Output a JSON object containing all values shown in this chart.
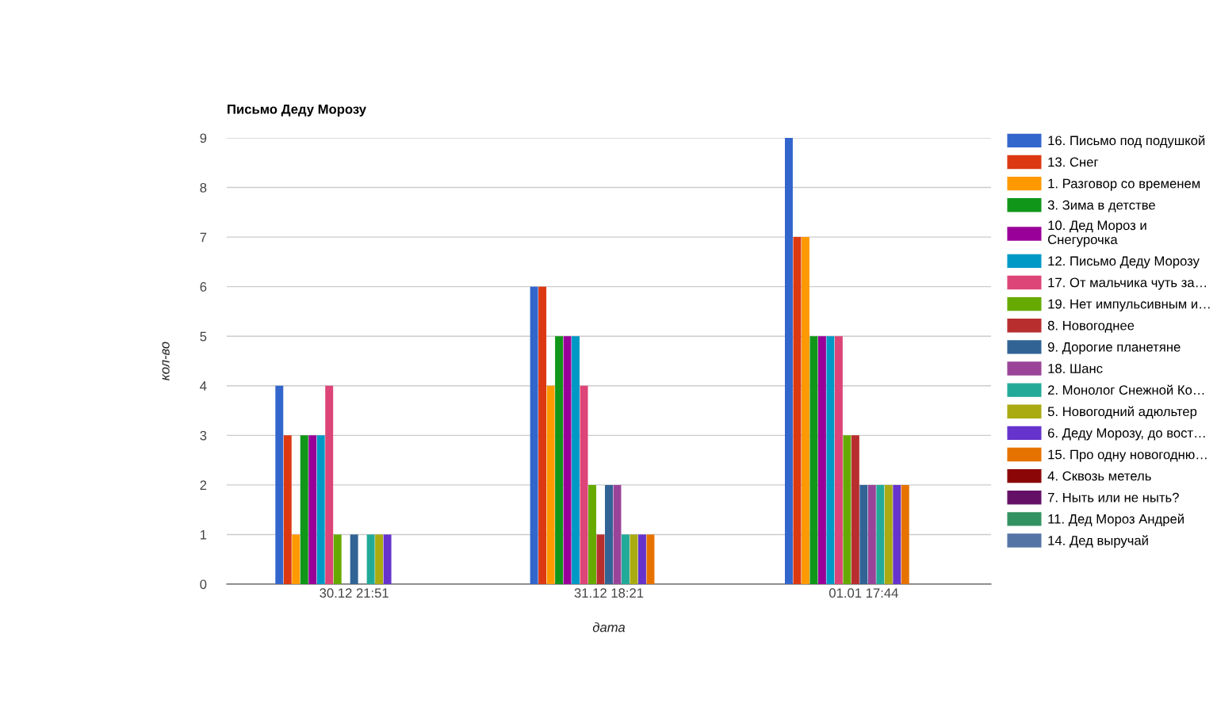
{
  "chart_data": {
    "type": "bar",
    "title": "Письмо Деду Морозу",
    "xlabel": "дата",
    "ylabel": "кол-во",
    "categories": [
      "30.12 21:51",
      "31.12 18:21",
      "01.01 17:44"
    ],
    "series": [
      {
        "name": "16. Письмо под подушкой",
        "color": "#3366cc",
        "values": [
          4,
          6,
          9
        ]
      },
      {
        "name": "13. Снег",
        "color": "#dc3912",
        "values": [
          3,
          6,
          7
        ]
      },
      {
        "name": "1. Разговор со временем",
        "color": "#ff9900",
        "values": [
          1,
          4,
          7
        ]
      },
      {
        "name": "3. Зима в детстве",
        "color": "#109618",
        "values": [
          3,
          5,
          5
        ]
      },
      {
        "name": "10. Дед Мороз и Снегурочка",
        "color": "#990099",
        "values": [
          3,
          5,
          5
        ]
      },
      {
        "name": "12. Письмо Деду Морозу",
        "color": "#0099c6",
        "values": [
          3,
          5,
          5
        ]
      },
      {
        "name": "17. От мальчика чуть за…",
        "color": "#dd4477",
        "values": [
          4,
          4,
          5
        ]
      },
      {
        "name": "19. Нет импульсивным и…",
        "color": "#66aa00",
        "values": [
          1,
          2,
          3
        ]
      },
      {
        "name": "8. Новогоднее",
        "color": "#b82e2e",
        "values": [
          0,
          1,
          3
        ]
      },
      {
        "name": "9. Дорогие планетяне",
        "color": "#316395",
        "values": [
          1,
          2,
          2
        ]
      },
      {
        "name": "18. Шанс",
        "color": "#994499",
        "values": [
          0,
          2,
          2
        ]
      },
      {
        "name": "2. Монолог Снежной Ко…",
        "color": "#22aa99",
        "values": [
          1,
          1,
          2
        ]
      },
      {
        "name": "5. Новогодний адюльтер",
        "color": "#aaaa11",
        "values": [
          1,
          1,
          2
        ]
      },
      {
        "name": "6. Деду Морозу, до вост…",
        "color": "#6633cc",
        "values": [
          1,
          1,
          2
        ]
      },
      {
        "name": "15. Про одну новогодню…",
        "color": "#e67300",
        "values": [
          0,
          1,
          2
        ]
      },
      {
        "name": "4. Сквозь метель",
        "color": "#8b0707",
        "values": [
          0,
          0,
          0
        ]
      },
      {
        "name": "7. Ныть или не ныть?",
        "color": "#651067",
        "values": [
          0,
          0,
          0
        ]
      },
      {
        "name": "11. Дед Мороз Андрей",
        "color": "#329262",
        "values": [
          0,
          0,
          0
        ]
      },
      {
        "name": "14. Дед выручай",
        "color": "#5574a6",
        "values": [
          0,
          0,
          0
        ]
      }
    ],
    "ylim": [
      0,
      9
    ],
    "yticks": [
      0,
      1,
      2,
      3,
      4,
      5,
      6,
      7,
      8,
      9
    ],
    "grid": "y",
    "legend": "right"
  }
}
